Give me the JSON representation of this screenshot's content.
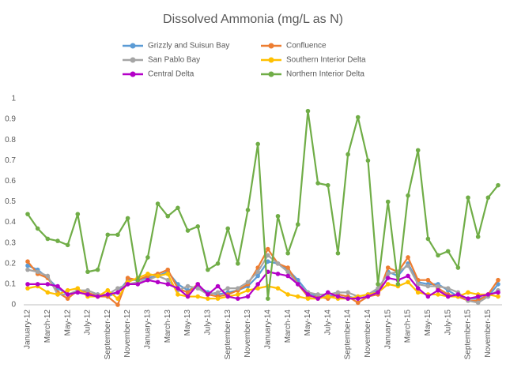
{
  "chart_data": {
    "type": "line",
    "title": "Dissolved Ammonia (mg/L as N)",
    "categories": [
      "January-12",
      null,
      "March-12",
      null,
      "May-12",
      null,
      "July-12",
      null,
      "September-12",
      null,
      "November-12",
      null,
      "January-13",
      null,
      "March-13",
      null,
      "May-13",
      null,
      "July-13",
      null,
      "September-13",
      null,
      "November-13",
      null,
      "January-14",
      null,
      "March-14",
      null,
      "May-14",
      null,
      "July-14",
      null,
      "September-14",
      null,
      "November-14",
      null,
      "January-15",
      null,
      "March-15",
      null,
      "May-15",
      null,
      "July-15",
      null,
      "September-15",
      null,
      "November-15",
      null
    ],
    "series": [
      {
        "name": "Grizzly and Suisun Bay",
        "color": "#5b9bd5",
        "values": [
          0.19,
          0.17,
          0.13,
          0.08,
          0.05,
          0.06,
          0.05,
          0.05,
          0.04,
          0.06,
          0.12,
          0.12,
          0.13,
          0.14,
          0.16,
          0.1,
          0.07,
          0.09,
          0.06,
          0.05,
          0.06,
          0.07,
          0.09,
          0.14,
          0.21,
          0.2,
          0.17,
          0.12,
          0.06,
          0.04,
          0.04,
          0.05,
          0.04,
          0.03,
          0.04,
          0.07,
          0.16,
          0.14,
          0.2,
          0.11,
          0.1,
          0.1,
          0.07,
          0.04,
          0.03,
          0.03,
          0.04,
          0.1
        ]
      },
      {
        "name": "Confluence",
        "color": "#ed7d31",
        "values": [
          0.21,
          0.15,
          0.13,
          0.06,
          0.03,
          0.07,
          0.06,
          0.04,
          0.04,
          0.0,
          0.13,
          0.12,
          0.14,
          0.15,
          0.17,
          0.08,
          0.06,
          0.1,
          0.05,
          0.04,
          0.05,
          0.07,
          0.1,
          0.18,
          0.27,
          0.2,
          0.18,
          0.1,
          0.04,
          0.04,
          0.03,
          0.05,
          0.04,
          0.01,
          0.04,
          0.05,
          0.18,
          0.16,
          0.23,
          0.12,
          0.12,
          0.08,
          0.05,
          0.04,
          0.02,
          0.02,
          0.05,
          0.12
        ]
      },
      {
        "name": "San Pablo Bay",
        "color": "#a5a5a5",
        "values": [
          0.17,
          0.16,
          0.14,
          0.05,
          0.05,
          0.07,
          0.07,
          0.05,
          0.05,
          0.08,
          0.1,
          0.11,
          0.12,
          0.14,
          0.12,
          0.07,
          0.09,
          0.08,
          0.05,
          0.06,
          0.08,
          0.08,
          0.11,
          0.16,
          0.24,
          0.2,
          0.16,
          0.1,
          0.06,
          0.05,
          0.05,
          0.06,
          0.06,
          0.04,
          0.05,
          0.08,
          0.15,
          0.16,
          0.19,
          0.1,
          0.09,
          0.09,
          0.08,
          0.06,
          0.02,
          0.01,
          0.04,
          0.07
        ]
      },
      {
        "name": "Southern Interior Delta",
        "color": "#ffc000",
        "values": [
          0.08,
          0.09,
          0.06,
          0.05,
          0.07,
          0.08,
          0.04,
          0.04,
          0.07,
          0.03,
          0.11,
          0.13,
          0.15,
          0.14,
          0.15,
          0.05,
          0.04,
          0.04,
          0.03,
          0.03,
          0.04,
          0.05,
          0.07,
          0.08,
          0.09,
          0.08,
          0.05,
          0.04,
          0.03,
          0.03,
          0.04,
          0.03,
          0.03,
          0.04,
          0.05,
          0.06,
          0.1,
          0.09,
          0.11,
          0.06,
          0.05,
          0.05,
          0.04,
          0.04,
          0.06,
          0.05,
          0.05,
          0.04
        ]
      },
      {
        "name": "Central Delta",
        "color": "#b400c8",
        "values": [
          0.1,
          0.1,
          0.1,
          0.09,
          0.05,
          0.06,
          0.05,
          0.04,
          0.05,
          0.06,
          0.1,
          0.1,
          0.12,
          0.11,
          0.1,
          0.08,
          0.04,
          0.1,
          0.05,
          0.09,
          0.04,
          0.03,
          0.04,
          0.1,
          0.16,
          0.15,
          0.14,
          0.1,
          0.05,
          0.03,
          0.06,
          0.04,
          0.03,
          0.03,
          0.04,
          0.06,
          0.13,
          0.12,
          0.14,
          0.08,
          0.04,
          0.07,
          0.04,
          0.05,
          0.03,
          0.04,
          0.05,
          0.06
        ]
      },
      {
        "name": "Northern Interior Delta",
        "color": "#70ad47",
        "values": [
          0.44,
          0.37,
          0.32,
          0.31,
          0.29,
          0.44,
          0.16,
          0.17,
          0.34,
          0.34,
          0.42,
          0.12,
          0.23,
          0.49,
          0.43,
          0.47,
          0.36,
          0.38,
          0.17,
          0.2,
          0.37,
          0.2,
          0.46,
          0.78,
          0.03,
          0.43,
          0.25,
          0.39,
          0.94,
          0.59,
          0.58,
          0.25,
          0.73,
          0.91,
          0.7,
          0.1,
          0.5,
          0.1,
          0.53,
          0.75,
          0.32,
          0.24,
          0.26,
          0.18,
          0.52,
          0.33,
          0.52,
          0.58
        ]
      }
    ],
    "ylim": [
      0,
      1
    ],
    "yticks": [
      0,
      0.1,
      0.2,
      0.3,
      0.4,
      0.5,
      0.6,
      0.7,
      0.8,
      0.9,
      1
    ],
    "grid": false
  }
}
